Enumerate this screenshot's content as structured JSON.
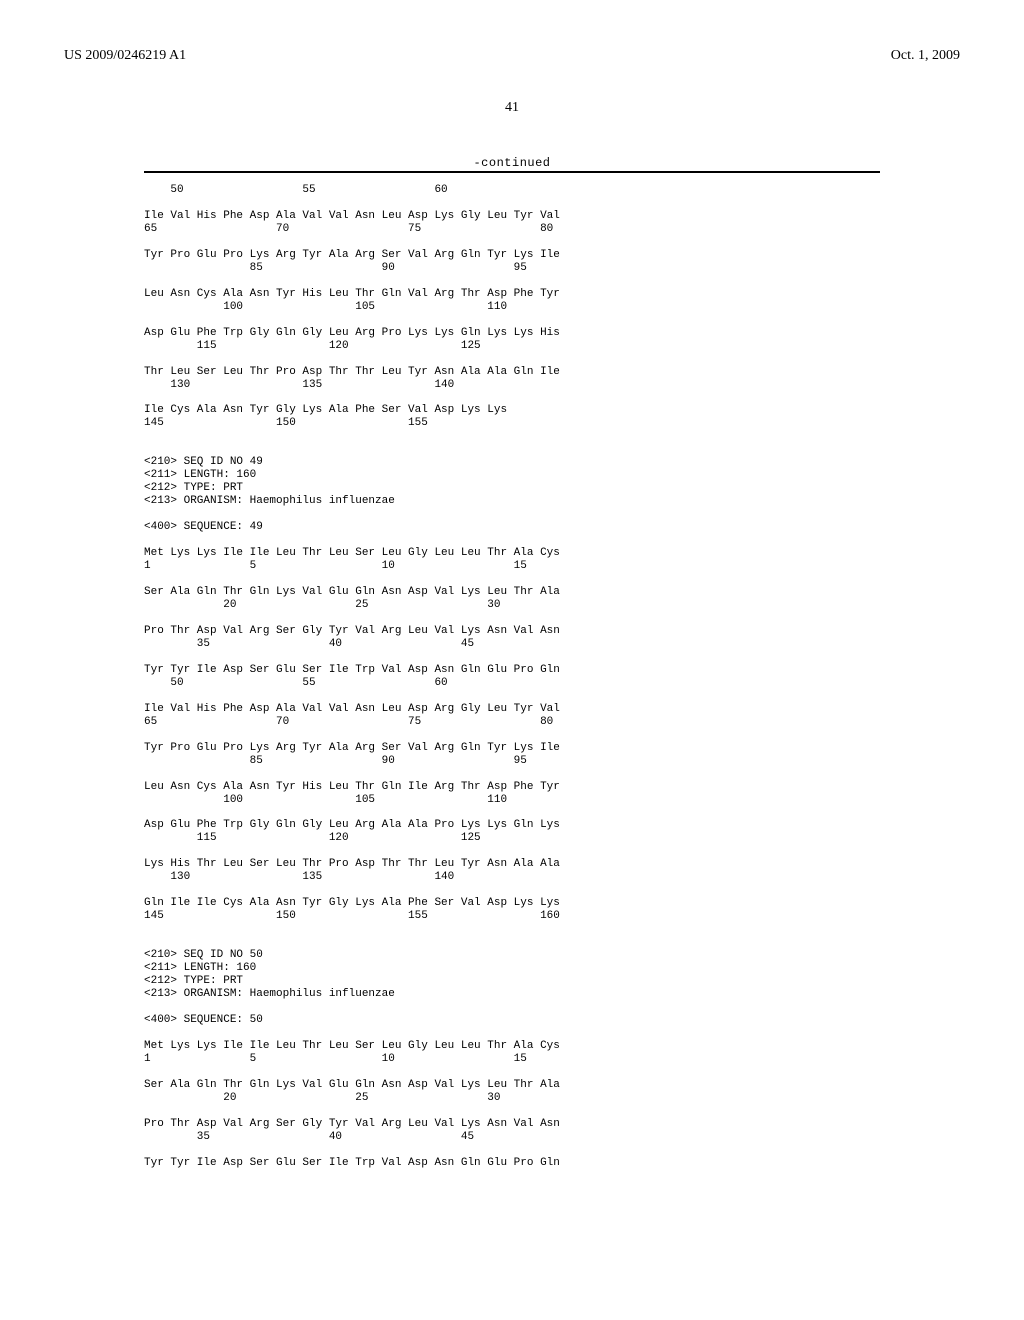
{
  "header": {
    "pub_number": "US 2009/0246219 A1",
    "pub_date": "Oct. 1, 2009"
  },
  "page_number": "41",
  "continued": "-continued",
  "sequence_text": "    50                  55                  60\n\nIle Val His Phe Asp Ala Val Val Asn Leu Asp Lys Gly Leu Tyr Val\n65                  70                  75                  80\n\nTyr Pro Glu Pro Lys Arg Tyr Ala Arg Ser Val Arg Gln Tyr Lys Ile\n                85                  90                  95\n\nLeu Asn Cys Ala Asn Tyr His Leu Thr Gln Val Arg Thr Asp Phe Tyr\n            100                 105                 110\n\nAsp Glu Phe Trp Gly Gln Gly Leu Arg Pro Lys Lys Gln Lys Lys His\n        115                 120                 125\n\nThr Leu Ser Leu Thr Pro Asp Thr Thr Leu Tyr Asn Ala Ala Gln Ile\n    130                 135                 140\n\nIle Cys Ala Asn Tyr Gly Lys Ala Phe Ser Val Asp Lys Lys\n145                 150                 155\n\n\n<210> SEQ ID NO 49\n<211> LENGTH: 160\n<212> TYPE: PRT\n<213> ORGANISM: Haemophilus influenzae\n\n<400> SEQUENCE: 49\n\nMet Lys Lys Ile Ile Leu Thr Leu Ser Leu Gly Leu Leu Thr Ala Cys\n1               5                   10                  15\n\nSer Ala Gln Thr Gln Lys Val Glu Gln Asn Asp Val Lys Leu Thr Ala\n            20                  25                  30\n\nPro Thr Asp Val Arg Ser Gly Tyr Val Arg Leu Val Lys Asn Val Asn\n        35                  40                  45\n\nTyr Tyr Ile Asp Ser Glu Ser Ile Trp Val Asp Asn Gln Glu Pro Gln\n    50                  55                  60\n\nIle Val His Phe Asp Ala Val Val Asn Leu Asp Arg Gly Leu Tyr Val\n65                  70                  75                  80\n\nTyr Pro Glu Pro Lys Arg Tyr Ala Arg Ser Val Arg Gln Tyr Lys Ile\n                85                  90                  95\n\nLeu Asn Cys Ala Asn Tyr His Leu Thr Gln Ile Arg Thr Asp Phe Tyr\n            100                 105                 110\n\nAsp Glu Phe Trp Gly Gln Gly Leu Arg Ala Ala Pro Lys Lys Gln Lys\n        115                 120                 125\n\nLys His Thr Leu Ser Leu Thr Pro Asp Thr Thr Leu Tyr Asn Ala Ala\n    130                 135                 140\n\nGln Ile Ile Cys Ala Asn Tyr Gly Lys Ala Phe Ser Val Asp Lys Lys\n145                 150                 155                 160\n\n\n<210> SEQ ID NO 50\n<211> LENGTH: 160\n<212> TYPE: PRT\n<213> ORGANISM: Haemophilus influenzae\n\n<400> SEQUENCE: 50\n\nMet Lys Lys Ile Ile Leu Thr Leu Ser Leu Gly Leu Leu Thr Ala Cys\n1               5                   10                  15\n\nSer Ala Gln Thr Gln Lys Val Glu Gln Asn Asp Val Lys Leu Thr Ala\n            20                  25                  30\n\nPro Thr Asp Val Arg Ser Gly Tyr Val Arg Leu Val Lys Asn Val Asn\n        35                  40                  45\n\nTyr Tyr Ile Asp Ser Glu Ser Ile Trp Val Asp Asn Gln Glu Pro Gln"
}
